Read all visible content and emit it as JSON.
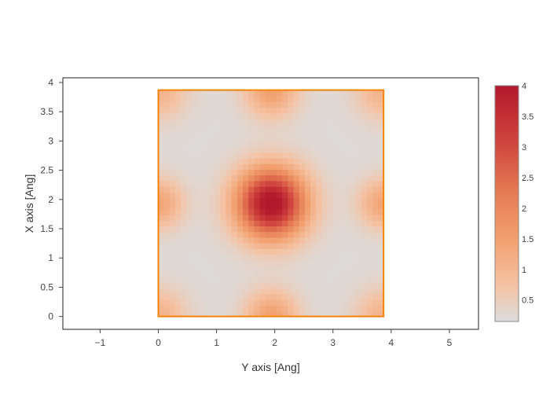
{
  "chart_data": {
    "type": "heatmap",
    "title": "",
    "xlabel": "Y axis [Ang]",
    "ylabel": "X axis [Ang]",
    "xlim": [
      -1.64,
      5.5
    ],
    "ylim": [
      -0.22,
      4.08
    ],
    "x_ticks": [
      -1,
      0,
      1,
      2,
      3,
      4,
      5
    ],
    "x_tick_labels": [
      "−1",
      "0",
      "1",
      "2",
      "3",
      "4",
      "5"
    ],
    "y_ticks": [
      0,
      0.5,
      1,
      1.5,
      2,
      2.5,
      3,
      3.5,
      4
    ],
    "y_tick_labels": [
      "0",
      "0.5",
      "1",
      "1.5",
      "2",
      "2.5",
      "3",
      "3.5",
      "4"
    ],
    "grid": false,
    "heatmap": {
      "x_range": [
        0,
        3.87
      ],
      "y_range": [
        0,
        3.87
      ],
      "resolution": 40,
      "background_value": 0.2,
      "peaks": [
        {
          "x": 1.94,
          "y": 1.94,
          "value": 4.0,
          "width": 0.42
        },
        {
          "x": 0.0,
          "y": 1.94,
          "value": 1.2,
          "width": 0.3
        },
        {
          "x": 3.87,
          "y": 1.94,
          "value": 1.2,
          "width": 0.3
        },
        {
          "x": 1.94,
          "y": 0.0,
          "value": 1.3,
          "width": 0.32
        },
        {
          "x": 1.94,
          "y": 3.87,
          "value": 1.3,
          "width": 0.32
        },
        {
          "x": 0.0,
          "y": 0.0,
          "value": 0.9,
          "width": 0.34
        },
        {
          "x": 3.87,
          "y": 0.0,
          "value": 0.9,
          "width": 0.34
        },
        {
          "x": 0.0,
          "y": 3.87,
          "value": 0.9,
          "width": 0.34
        },
        {
          "x": 3.87,
          "y": 3.87,
          "value": 0.9,
          "width": 0.34
        }
      ]
    },
    "cell_outline": {
      "corners": [
        [
          0,
          0
        ],
        [
          3.87,
          0
        ],
        [
          3.87,
          3.87
        ],
        [
          0,
          3.87
        ]
      ],
      "color": "#f5820a"
    },
    "colorbar": {
      "min": 0.15,
      "max": 4.0,
      "ticks": [
        0.5,
        1,
        1.5,
        2,
        2.5,
        3,
        3.5,
        4
      ],
      "tick_labels": [
        "0.5",
        "1",
        "1.5",
        "2",
        "2.5",
        "3",
        "3.5",
        "4"
      ],
      "colorscale": [
        [
          0.0,
          "#dcdcdc"
        ],
        [
          0.15,
          "#f4c3a5"
        ],
        [
          0.35,
          "#f2a06e"
        ],
        [
          0.55,
          "#e57a54"
        ],
        [
          0.75,
          "#d1473f"
        ],
        [
          1.0,
          "#b2182b"
        ]
      ]
    },
    "colors": {
      "axis_line": "#444444",
      "frame": "#222222"
    }
  }
}
